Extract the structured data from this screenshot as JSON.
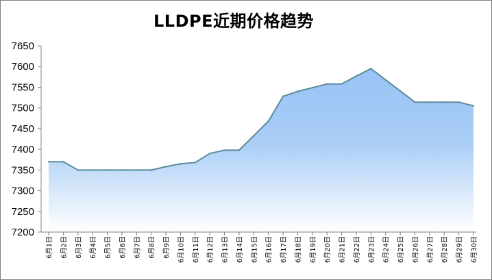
{
  "chart_data": {
    "type": "area",
    "title": "LLDPE近期价格趋势",
    "categories": [
      "6月1日",
      "6月2日",
      "6月3日",
      "6月4日",
      "6月5日",
      "6月6日",
      "6月7日",
      "6月8日",
      "6月9日",
      "6月10日",
      "6月11日",
      "6月12日",
      "6月13日",
      "6月14日",
      "6月15日",
      "6月16日",
      "6月17日",
      "6月18日",
      "6月19日",
      "6月20日",
      "6月21日",
      "6月22日",
      "6月23日",
      "6月24日",
      "6月25日",
      "6月26日",
      "6月27日",
      "6月28日",
      "6月29日",
      "6月30日"
    ],
    "values": [
      7370,
      7370,
      7350,
      7350,
      7350,
      7350,
      7350,
      7350,
      7358,
      7365,
      7368,
      7390,
      7398,
      7398,
      7433,
      7468,
      7528,
      7540,
      7549,
      7558,
      7558,
      7577,
      7595,
      7568,
      7541,
      7514,
      7514,
      7514,
      7514,
      7505
    ],
    "ylim": [
      7200,
      7650
    ],
    "yticks": [
      7200,
      7250,
      7300,
      7350,
      7400,
      7450,
      7500,
      7550,
      7600,
      7650
    ],
    "grid": false,
    "legend": "none",
    "colors": {
      "line": "#5b8a9c",
      "fill_top": "#9ac3f5",
      "fill_bottom": "#ffffff",
      "axis": "#808080"
    }
  }
}
